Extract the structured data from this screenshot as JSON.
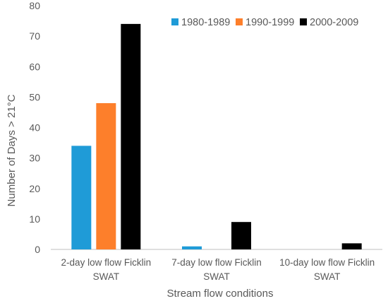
{
  "chart_data": {
    "type": "bar",
    "title": "",
    "xlabel": "Stream flow conditions",
    "ylabel": "Number of Days > 21°C",
    "ylim": [
      0,
      80
    ],
    "yticks": [
      0,
      10,
      20,
      30,
      40,
      50,
      60,
      70,
      80
    ],
    "grid": false,
    "legend_position": "top-right",
    "categories": [
      [
        "2-day low flow Ficklin",
        "SWAT"
      ],
      [
        "7-day low flow Ficklin",
        "SWAT"
      ],
      [
        "10-day low flow Ficklin",
        "SWAT"
      ]
    ],
    "series": [
      {
        "name": "1980-1989",
        "color": "#1f9bd7",
        "values": [
          34,
          1,
          0
        ]
      },
      {
        "name": "1990-1999",
        "color": "#fd7f2b",
        "values": [
          48,
          0,
          0
        ]
      },
      {
        "name": "2000-2009",
        "color": "#000000",
        "values": [
          74,
          9,
          2
        ]
      }
    ]
  }
}
